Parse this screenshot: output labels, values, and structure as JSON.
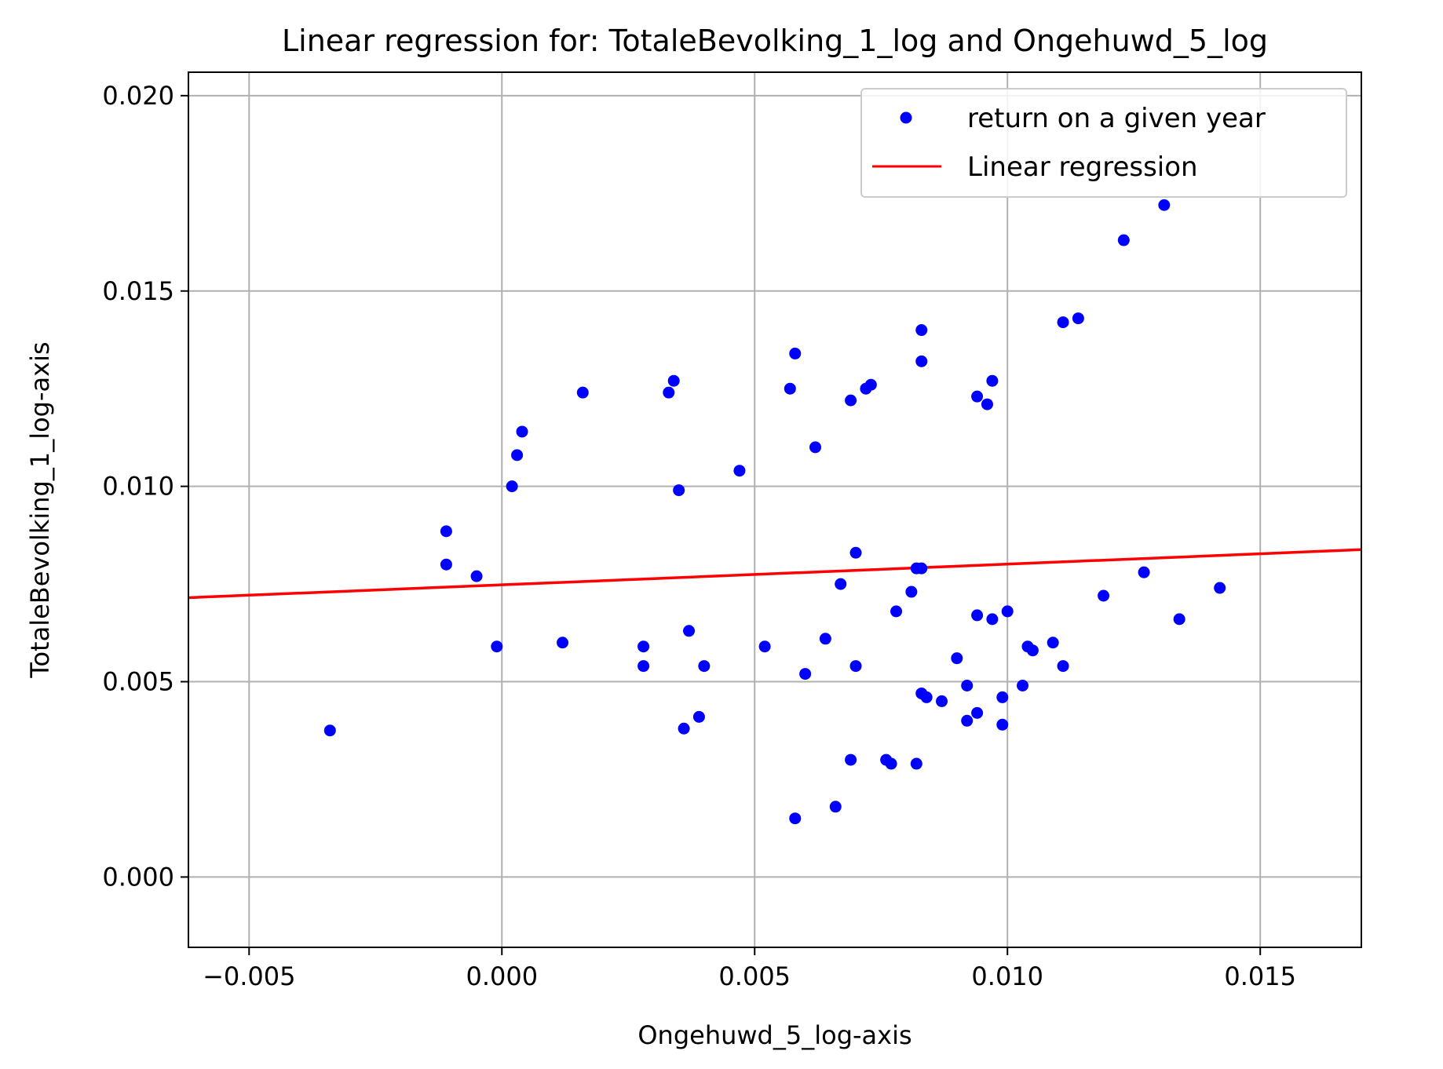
{
  "chart_data": {
    "type": "scatter",
    "title": "Linear regression for: TotaleBevolking_1_log and Ongehuwd_5_log",
    "xlabel": "Ongehuwd_5_log-axis",
    "ylabel": "TotaleBevolking_1_log-axis",
    "xlim": [
      -0.0062,
      0.017
    ],
    "ylim": [
      -0.0018,
      0.0206
    ],
    "xticks": [
      -0.005,
      0.0,
      0.005,
      0.01,
      0.015
    ],
    "xtick_labels": [
      "−0.005",
      "0.000",
      "0.005",
      "0.010",
      "0.015"
    ],
    "yticks": [
      0.0,
      0.005,
      0.01,
      0.015,
      0.02
    ],
    "ytick_labels": [
      "0.000",
      "0.005",
      "0.010",
      "0.015",
      "0.020"
    ],
    "grid": true,
    "legend_position": "top-right",
    "series": [
      {
        "name": "return on a given year",
        "kind": "scatter",
        "color": "#0000ff",
        "points": [
          [
            -0.0034,
            0.00375
          ],
          [
            -0.0011,
            0.00885
          ],
          [
            -0.0011,
            0.008
          ],
          [
            -0.0005,
            0.0077
          ],
          [
            -0.0001,
            0.0059
          ],
          [
            0.0002,
            0.01
          ],
          [
            0.0003,
            0.0108
          ],
          [
            0.0004,
            0.0114
          ],
          [
            0.0012,
            0.006
          ],
          [
            0.0016,
            0.0124
          ],
          [
            0.0028,
            0.0054
          ],
          [
            0.0028,
            0.0059
          ],
          [
            0.0033,
            0.0124
          ],
          [
            0.0034,
            0.0127
          ],
          [
            0.0035,
            0.0099
          ],
          [
            0.0036,
            0.0038
          ],
          [
            0.0037,
            0.0063
          ],
          [
            0.0039,
            0.0041
          ],
          [
            0.004,
            0.0054
          ],
          [
            0.0047,
            0.0104
          ],
          [
            0.0052,
            0.0059
          ],
          [
            0.0057,
            0.0125
          ],
          [
            0.0058,
            0.0134
          ],
          [
            0.0058,
            0.0015
          ],
          [
            0.006,
            0.0052
          ],
          [
            0.0062,
            0.011
          ],
          [
            0.0064,
            0.0061
          ],
          [
            0.0066,
            0.0018
          ],
          [
            0.0067,
            0.0075
          ],
          [
            0.0069,
            0.0122
          ],
          [
            0.0069,
            0.003
          ],
          [
            0.007,
            0.0054
          ],
          [
            0.007,
            0.0083
          ],
          [
            0.0072,
            0.0125
          ],
          [
            0.0073,
            0.0126
          ],
          [
            0.0076,
            0.003
          ],
          [
            0.0077,
            0.0029
          ],
          [
            0.0078,
            0.0068
          ],
          [
            0.0081,
            0.0073
          ],
          [
            0.0082,
            0.0029
          ],
          [
            0.0082,
            0.0079
          ],
          [
            0.0083,
            0.0079
          ],
          [
            0.0083,
            0.014
          ],
          [
            0.0083,
            0.0132
          ],
          [
            0.0083,
            0.0047
          ],
          [
            0.0084,
            0.0046
          ],
          [
            0.0087,
            0.0045
          ],
          [
            0.009,
            0.0056
          ],
          [
            0.0092,
            0.0049
          ],
          [
            0.0092,
            0.004
          ],
          [
            0.0094,
            0.0123
          ],
          [
            0.0094,
            0.0067
          ],
          [
            0.0094,
            0.0042
          ],
          [
            0.0096,
            0.0121
          ],
          [
            0.0097,
            0.0127
          ],
          [
            0.0097,
            0.0066
          ],
          [
            0.0099,
            0.0039
          ],
          [
            0.0099,
            0.0046
          ],
          [
            0.01,
            0.0068
          ],
          [
            0.0103,
            0.0049
          ],
          [
            0.0104,
            0.0059
          ],
          [
            0.0105,
            0.0058
          ],
          [
            0.0109,
            0.006
          ],
          [
            0.0111,
            0.0054
          ],
          [
            0.0111,
            0.0142
          ],
          [
            0.0114,
            0.0143
          ],
          [
            0.0119,
            0.0072
          ],
          [
            0.0123,
            0.0163
          ],
          [
            0.0127,
            0.0078
          ],
          [
            0.0131,
            0.0172
          ],
          [
            0.0134,
            0.0066
          ],
          [
            0.0142,
            0.0074
          ]
        ]
      },
      {
        "name": "Linear regression",
        "kind": "line",
        "color": "#ff0000",
        "points": [
          [
            -0.0062,
            0.00715
          ],
          [
            0.017,
            0.00838
          ]
        ]
      }
    ]
  }
}
